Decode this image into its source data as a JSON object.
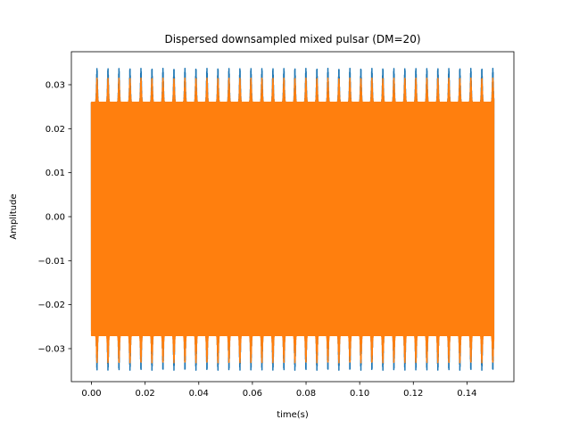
{
  "chart_data": {
    "type": "line",
    "title": "Dispersed downsampled mixed pulsar (DM=20)",
    "xlabel": "time(s)",
    "ylabel": "Amplitude",
    "xlim": [
      -0.0075,
      0.1575
    ],
    "ylim": [
      -0.0375,
      0.0375
    ],
    "x_ticks": [
      0.0,
      0.02,
      0.04,
      0.06,
      0.08,
      0.1,
      0.12,
      0.14
    ],
    "x_tick_labels": [
      "0.00",
      "0.02",
      "0.04",
      "0.06",
      "0.08",
      "0.10",
      "0.12",
      "0.14"
    ],
    "y_ticks": [
      -0.03,
      -0.02,
      -0.01,
      0.0,
      0.01,
      0.02,
      0.03
    ],
    "y_tick_labels": [
      "−0.03",
      "−0.02",
      "−0.01",
      "0.00",
      "0.01",
      "0.02",
      "0.03"
    ],
    "grid": false,
    "legend": "none",
    "signal": {
      "t_start": 0.0,
      "t_end": 0.15,
      "pulse_period": 0.0041,
      "pulse_count": 36
    },
    "series": [
      {
        "color": "#1f77b4",
        "envelope_max": 0.0337,
        "envelope_min": -0.0349,
        "baseline_max": 0.026,
        "baseline_min": -0.026
      },
      {
        "color": "#ff7f0e",
        "envelope_max": 0.0315,
        "envelope_min": -0.0332,
        "baseline_max": 0.026,
        "baseline_min": -0.027
      }
    ]
  }
}
